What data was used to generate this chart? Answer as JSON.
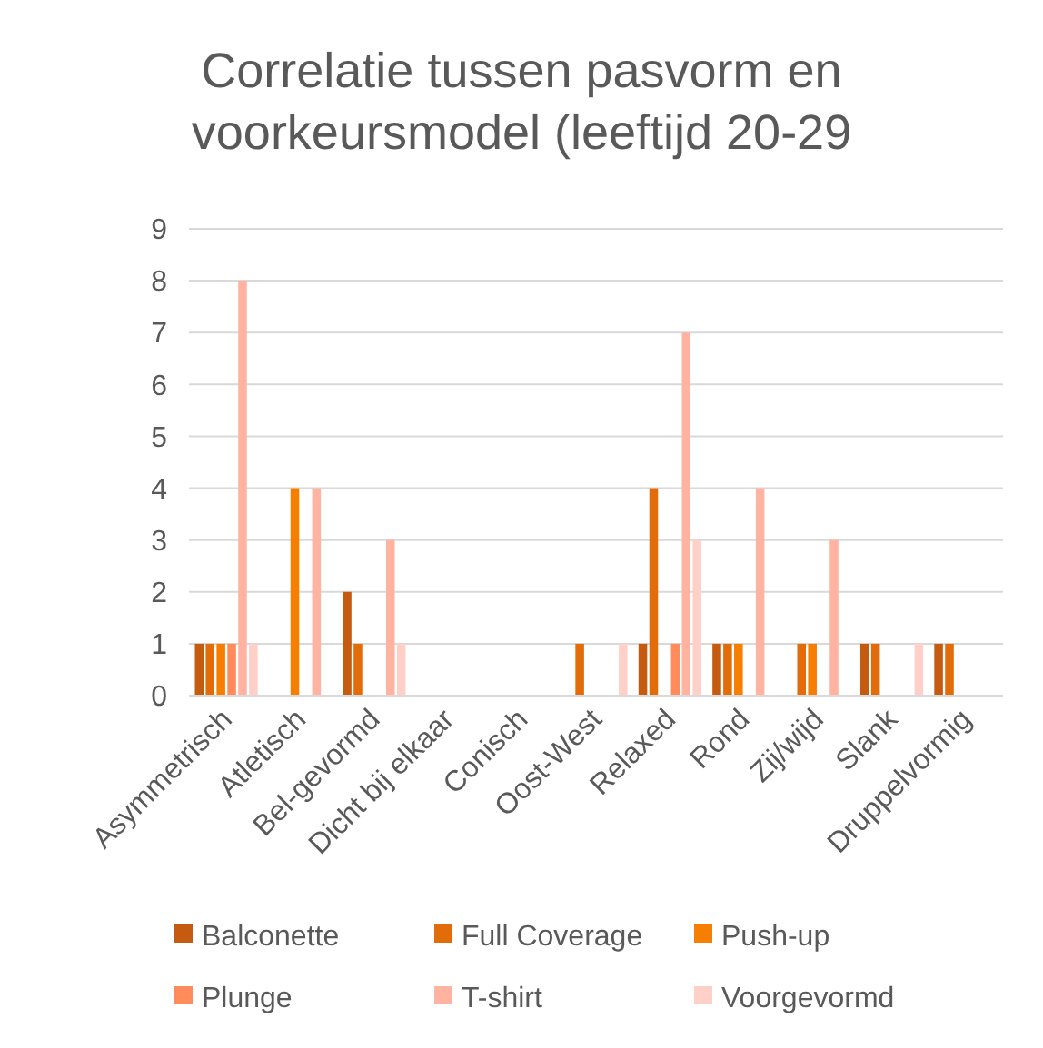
{
  "chart_data": {
    "type": "bar",
    "title": "Correlatie tussen pasvorm en voorkeursmodel (leeftijd 20-29",
    "categories": [
      "Asymmetrisch",
      "Atletisch",
      "Bel-gevormd",
      "Dicht bij elkaar",
      "Conisch",
      "Oost-West",
      "Relaxed",
      "Rond",
      "Zij/wijd",
      "Slank",
      "Druppelvormig"
    ],
    "series": [
      {
        "name": "Balconette",
        "color": "#c55a11",
        "values": [
          1,
          0,
          2,
          0,
          0,
          0,
          1,
          1,
          0,
          1,
          1
        ]
      },
      {
        "name": "Full Coverage",
        "color": "#e26b0a",
        "values": [
          1,
          0,
          1,
          0,
          0,
          1,
          4,
          1,
          1,
          1,
          1
        ]
      },
      {
        "name": "Push-up",
        "color": "#f77f00",
        "values": [
          1,
          4,
          0,
          0,
          0,
          0,
          0,
          1,
          1,
          0,
          0
        ]
      },
      {
        "name": "Plunge",
        "color": "#ff8c5a",
        "values": [
          1,
          0,
          0,
          0,
          0,
          0,
          1,
          0,
          0,
          0,
          0
        ]
      },
      {
        "name": "T-shirt",
        "color": "#ffb3a0",
        "values": [
          8,
          4,
          3,
          0,
          0,
          0,
          7,
          4,
          3,
          0,
          0
        ]
      },
      {
        "name": "Voorgevormd",
        "color": "#ffd0c8",
        "values": [
          1,
          0,
          1,
          0,
          0,
          1,
          3,
          0,
          0,
          1,
          0
        ]
      }
    ],
    "ylim": [
      0,
      9
    ],
    "yticks": [
      0,
      1,
      2,
      3,
      4,
      5,
      6,
      7,
      8,
      9
    ],
    "grid": "y",
    "legend": "bottom"
  }
}
